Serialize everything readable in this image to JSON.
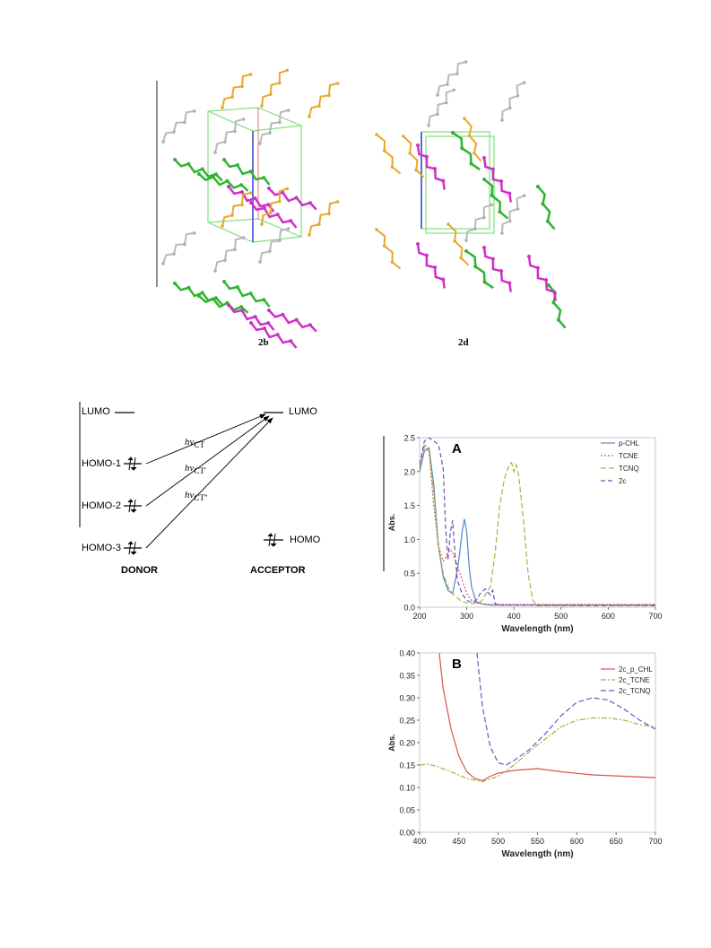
{
  "crystal": {
    "label_left": "2b",
    "label_right": "2d",
    "colors": {
      "orange": "#e8a82a",
      "gray": "#b9b9b9",
      "green": "#2fb52f",
      "magenta": "#d02fc8",
      "cell_green": "#7fe07f",
      "cell_blue": "#2f3fd0"
    }
  },
  "energy": {
    "donor_label": "DONOR",
    "acceptor_label": "ACCEPTOR",
    "donor_lumo": "LUMO",
    "acceptor_lumo": "LUMO",
    "acceptor_homo": "HOMO",
    "homo_levels": [
      "HOMO-1",
      "HOMO-2",
      "HOMO-3"
    ],
    "transitions": [
      {
        "base": "hν",
        "sub": "CT"
      },
      {
        "base": "hν",
        "sub": "CT'"
      },
      {
        "base": "hν",
        "sub": "CT''"
      }
    ]
  },
  "chart_data": [
    {
      "type": "line",
      "panel_label": "A",
      "xlabel": "Wavelength (nm)",
      "ylabel": "Abs.",
      "xlim": [
        200,
        700
      ],
      "ylim": [
        0,
        2.5
      ],
      "x_ticks": [
        200,
        300,
        400,
        500,
        600,
        700
      ],
      "y_ticks": [
        "0.0",
        "0.5",
        "1.0",
        "1.5",
        "2.0",
        "2.5"
      ],
      "legend_position": "top-right",
      "grid": false,
      "series": [
        {
          "name": "p-CHL",
          "color": "#4f86c6",
          "dash": "none",
          "x": [
            200,
            210,
            220,
            230,
            240,
            250,
            260,
            270,
            280,
            285,
            290,
            295,
            300,
            305,
            310,
            320,
            330,
            350,
            400,
            500,
            600,
            700
          ],
          "y": [
            2.0,
            2.3,
            2.35,
            1.8,
            0.9,
            0.45,
            0.25,
            0.2,
            0.55,
            0.8,
            1.1,
            1.3,
            1.1,
            0.6,
            0.3,
            0.08,
            0.05,
            0.03,
            0.03,
            0.03,
            0.03,
            0.03
          ]
        },
        {
          "name": "TCNE",
          "color": "#d9534f",
          "dash": "2,2",
          "x": [
            200,
            210,
            220,
            230,
            240,
            250,
            255,
            260,
            265,
            270,
            280,
            290,
            300,
            310,
            320,
            350,
            400,
            500,
            700
          ],
          "y": [
            2.1,
            2.4,
            2.3,
            1.5,
            0.9,
            0.68,
            0.72,
            0.8,
            0.85,
            0.8,
            0.62,
            0.4,
            0.2,
            0.1,
            0.06,
            0.04,
            0.04,
            0.04,
            0.04
          ]
        },
        {
          "name": "TCNQ",
          "color": "#a4b33c",
          "dash": "6,3",
          "x": [
            200,
            210,
            220,
            230,
            240,
            250,
            260,
            270,
            290,
            310,
            330,
            350,
            360,
            370,
            380,
            390,
            395,
            400,
            405,
            410,
            420,
            430,
            440,
            450,
            500,
            700
          ],
          "y": [
            2.05,
            2.35,
            2.3,
            1.7,
            0.9,
            0.5,
            0.3,
            0.2,
            0.08,
            0.05,
            0.08,
            0.3,
            0.8,
            1.5,
            1.9,
            2.1,
            2.13,
            2.0,
            2.1,
            1.95,
            1.3,
            0.5,
            0.1,
            0.02,
            0.02,
            0.02
          ]
        },
        {
          "name": "2c",
          "color": "#6a4fb8",
          "dash": "5,3",
          "x": [
            200,
            210,
            220,
            230,
            240,
            250,
            255,
            260,
            265,
            270,
            275,
            280,
            290,
            300,
            310,
            320,
            330,
            340,
            345,
            350,
            355,
            360,
            370,
            400,
            500,
            700
          ],
          "y": [
            2.1,
            2.45,
            2.5,
            2.45,
            2.4,
            2.05,
            1.2,
            0.7,
            1.1,
            1.28,
            0.8,
            0.4,
            0.2,
            0.1,
            0.07,
            0.1,
            0.22,
            0.27,
            0.22,
            0.18,
            0.25,
            0.05,
            0.03,
            0.03,
            0.03,
            0.03
          ]
        }
      ]
    },
    {
      "type": "line",
      "panel_label": "B",
      "xlabel": "Wavelength (nm)",
      "ylabel": "Abs.",
      "xlim": [
        400,
        700
      ],
      "ylim": [
        0,
        0.4
      ],
      "x_ticks": [
        400,
        450,
        500,
        550,
        600,
        650,
        700
      ],
      "y_ticks": [
        "0.00",
        "0.05",
        "0.10",
        "0.15",
        "0.20",
        "0.25",
        "0.30",
        "0.35",
        "0.40"
      ],
      "legend_position": "top-right",
      "grid": false,
      "series": [
        {
          "name": "2c_p_CHL",
          "color": "#d9534f",
          "dash": "none",
          "x": [
            425,
            430,
            440,
            450,
            460,
            470,
            480,
            490,
            500,
            520,
            550,
            580,
            620,
            660,
            700
          ],
          "y": [
            0.4,
            0.32,
            0.23,
            0.17,
            0.135,
            0.12,
            0.115,
            0.125,
            0.132,
            0.138,
            0.142,
            0.135,
            0.128,
            0.125,
            0.122
          ]
        },
        {
          "name": "2c_TCNE",
          "color": "#a4b33c",
          "dash": "6,2,2,2",
          "x": [
            400,
            410,
            420,
            440,
            460,
            480,
            500,
            520,
            550,
            580,
            600,
            620,
            640,
            660,
            680,
            700
          ],
          "y": [
            0.15,
            0.152,
            0.148,
            0.135,
            0.12,
            0.113,
            0.125,
            0.15,
            0.195,
            0.235,
            0.25,
            0.255,
            0.255,
            0.25,
            0.24,
            0.235
          ]
        },
        {
          "name": "2c_TCNQ",
          "color": "#5b5fbf",
          "dash": "6,3",
          "x": [
            473,
            480,
            490,
            500,
            510,
            520,
            540,
            560,
            580,
            600,
            620,
            640,
            660,
            680,
            700
          ],
          "y": [
            0.4,
            0.28,
            0.19,
            0.155,
            0.15,
            0.16,
            0.185,
            0.22,
            0.26,
            0.29,
            0.3,
            0.295,
            0.275,
            0.25,
            0.23
          ]
        }
      ]
    }
  ]
}
